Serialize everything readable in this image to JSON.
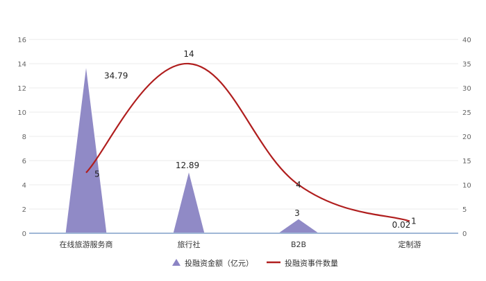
{
  "chart_data": {
    "type": "combo",
    "categories": [
      "在线旅游服务商",
      "旅行社",
      "B2B",
      "定制游"
    ],
    "series": [
      {
        "name": "投融资金额（亿元）",
        "kind": "area-peak",
        "axis": "right",
        "values": [
          34.79,
          12.89,
          3,
          0.02
        ],
        "labels": [
          "34.79",
          "12.89",
          "3",
          "0.02"
        ],
        "color": "#8b84c4"
      },
      {
        "name": "投融资事件数量",
        "kind": "smooth-line",
        "axis": "left",
        "values": [
          5,
          14,
          4,
          1
        ],
        "labels": [
          "5",
          "14",
          "4",
          "1"
        ],
        "color": "#b01e1e"
      }
    ],
    "y_left": {
      "min": 0,
      "max": 16,
      "ticks": [
        "0",
        "2",
        "4",
        "6",
        "8",
        "10",
        "12",
        "14",
        "16"
      ]
    },
    "y_right": {
      "min": 0,
      "max": 40,
      "ticks": [
        "0",
        "5",
        "10",
        "15",
        "20",
        "25",
        "30",
        "35",
        "40"
      ]
    },
    "grid": true,
    "legend_position": "bottom-center"
  }
}
